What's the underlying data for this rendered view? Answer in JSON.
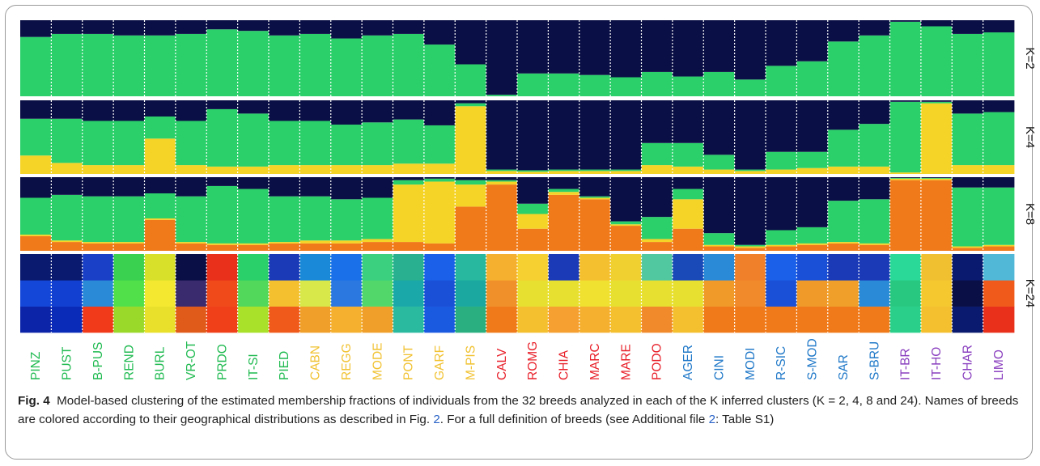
{
  "caption": {
    "label": "Fig. 4",
    "text_1": "Model-based clustering of the estimated membership fractions of individuals from the 32 breeds analyzed in each of the K inferred clusters (K = 2, 4, 8 and 24). Names of breeds are colored according to their geographical distributions as described in Fig.",
    "ref_fig": "2",
    "text_2": ". For a full definition of breeds (see Additional file",
    "ref_file": "2",
    "text_3": ": Table S1)"
  },
  "colors": {
    "green": "#2bd06a",
    "yellow": "#f5d327",
    "navy": "#0a0f45",
    "orange": "#f07a1a",
    "purple_label": "#8a3fbf",
    "green_label": "#1fba50",
    "yellow_label": "#f1c232",
    "red_label": "#e8202a",
    "blue_label": "#1f78c8"
  },
  "chart_data": {
    "type": "bar",
    "stacked": true,
    "orientation": "vertical",
    "x_axis": "breeds (individuals grouped by breed)",
    "panels": [
      {
        "label": "K=2",
        "series": [
          "green",
          "navy"
        ]
      },
      {
        "label": "K=4",
        "series": [
          "yellow",
          "green",
          "navy"
        ]
      },
      {
        "label": "K=8",
        "series": [
          "orange",
          "yellow",
          "green",
          "navy"
        ]
      },
      {
        "label": "K=24",
        "series": [
          "multiple clusters"
        ]
      }
    ],
    "breeds": [
      {
        "name": "PINZ",
        "group": "green",
        "k2": [
          0.78,
          0.22
        ],
        "k4": [
          0.25,
          0.5,
          0.25
        ],
        "k8": [
          0.2,
          0.02,
          0.5,
          0.28
        ],
        "k24": [
          "#0b24a8",
          "#1446d8",
          "#0a1a6e"
        ]
      },
      {
        "name": "PUST",
        "group": "green",
        "k2": [
          0.82,
          0.18
        ],
        "k4": [
          0.15,
          0.6,
          0.25
        ],
        "k8": [
          0.12,
          0.02,
          0.62,
          0.24
        ],
        "k24": [
          "#0a2bb8",
          "#1240d0",
          "#0a1a6e"
        ]
      },
      {
        "name": "B-PUS",
        "group": "green",
        "k2": [
          0.82,
          0.18
        ],
        "k4": [
          0.12,
          0.6,
          0.28
        ],
        "k8": [
          0.1,
          0.02,
          0.62,
          0.26
        ],
        "k24": [
          "#f03a1a",
          "#2a8ad8",
          "#1a40c8"
        ]
      },
      {
        "name": "REND",
        "group": "green",
        "k2": [
          0.8,
          0.2
        ],
        "k4": [
          0.12,
          0.6,
          0.28
        ],
        "k8": [
          0.1,
          0.02,
          0.62,
          0.26
        ],
        "k24": [
          "#9ad82a",
          "#52e04a",
          "#3ad050"
        ]
      },
      {
        "name": "BURL",
        "group": "green",
        "k2": [
          0.8,
          0.2
        ],
        "k4": [
          0.48,
          0.3,
          0.22
        ],
        "k8": [
          0.42,
          0.02,
          0.34,
          0.22
        ],
        "k24": [
          "#e8e02a",
          "#f5e830",
          "#d8e02a"
        ]
      },
      {
        "name": "VR-OT",
        "group": "green",
        "k2": [
          0.82,
          0.18
        ],
        "k4": [
          0.12,
          0.6,
          0.28
        ],
        "k8": [
          0.1,
          0.02,
          0.62,
          0.26
        ],
        "k24": [
          "#e05a1a",
          "#3a2a6e",
          "#0a0f45"
        ]
      },
      {
        "name": "PRDO",
        "group": "green",
        "k2": [
          0.88,
          0.12
        ],
        "k4": [
          0.1,
          0.78,
          0.12
        ],
        "k8": [
          0.08,
          0.02,
          0.78,
          0.12
        ],
        "k24": [
          "#f0401a",
          "#f04a1a",
          "#e8301a"
        ]
      },
      {
        "name": "IT-SI",
        "group": "green",
        "k2": [
          0.86,
          0.14
        ],
        "k4": [
          0.1,
          0.72,
          0.18
        ],
        "k8": [
          0.08,
          0.02,
          0.74,
          0.16
        ],
        "k24": [
          "#a8e02a",
          "#52d85a",
          "#2ad06a"
        ]
      },
      {
        "name": "PIED",
        "group": "green",
        "k2": [
          0.8,
          0.2
        ],
        "k4": [
          0.12,
          0.6,
          0.28
        ],
        "k8": [
          0.1,
          0.02,
          0.62,
          0.26
        ],
        "k24": [
          "#f05a1a",
          "#f5c030",
          "#1a3ab8"
        ]
      },
      {
        "name": "CABN",
        "group": "yellow",
        "k2": [
          0.82,
          0.18
        ],
        "k4": [
          0.12,
          0.6,
          0.28
        ],
        "k8": [
          0.1,
          0.04,
          0.6,
          0.26
        ],
        "k24": [
          "#f0a02a",
          "#d8e84a",
          "#1a8ad8"
        ]
      },
      {
        "name": "REGG",
        "group": "yellow",
        "k2": [
          0.76,
          0.24
        ],
        "k4": [
          0.12,
          0.55,
          0.33
        ],
        "k8": [
          0.1,
          0.04,
          0.56,
          0.3
        ],
        "k24": [
          "#f5b030",
          "#2a78e0",
          "#1a70e8"
        ]
      },
      {
        "name": "MODE",
        "group": "yellow",
        "k2": [
          0.8,
          0.2
        ],
        "k4": [
          0.12,
          0.58,
          0.3
        ],
        "k8": [
          0.12,
          0.04,
          0.56,
          0.28
        ],
        "k24": [
          "#f0a02a",
          "#52d86a",
          "#3ad080"
        ]
      },
      {
        "name": "PONT",
        "group": "yellow",
        "k2": [
          0.82,
          0.18
        ],
        "k4": [
          0.14,
          0.6,
          0.26
        ],
        "k8": [
          0.12,
          0.78,
          0.06,
          0.04
        ],
        "k24": [
          "#2abaa0",
          "#1aa8a8",
          "#28b090"
        ]
      },
      {
        "name": "GARF",
        "group": "yellow",
        "k2": [
          0.68,
          0.32
        ],
        "k4": [
          0.14,
          0.52,
          0.34
        ],
        "k8": [
          0.1,
          0.84,
          0.04,
          0.02
        ],
        "k24": [
          "#1a5ae0",
          "#1a50d8",
          "#1a60e8"
        ]
      },
      {
        "name": "M-PIS",
        "group": "yellow",
        "k2": [
          0.42,
          0.58
        ],
        "k4": [
          0.92,
          0.04,
          0.04
        ],
        "k8": [
          0.6,
          0.3,
          0.06,
          0.04
        ],
        "k24": [
          "#2ab080",
          "#1aa8a0",
          "#28b8a0"
        ]
      },
      {
        "name": "CALV",
        "group": "red",
        "k2": [
          0.02,
          0.98
        ],
        "k4": [
          0.04,
          0.02,
          0.94
        ],
        "k8": [
          0.9,
          0.04,
          0.02,
          0.04
        ],
        "k24": [
          "#f07a1a",
          "#f0902a",
          "#f5b030"
        ]
      },
      {
        "name": "ROMG",
        "group": "red",
        "k2": [
          0.3,
          0.7
        ],
        "k4": [
          0.03,
          0.02,
          0.95
        ],
        "k8": [
          0.3,
          0.2,
          0.14,
          0.36
        ],
        "k24": [
          "#f5c030",
          "#e8e030",
          "#f5d030"
        ]
      },
      {
        "name": "CHIA",
        "group": "red",
        "k2": [
          0.3,
          0.7
        ],
        "k4": [
          0.04,
          0.02,
          0.94
        ],
        "k8": [
          0.76,
          0.04,
          0.04,
          0.16
        ],
        "k24": [
          "#f5a030",
          "#e8e030",
          "#1a3ab8"
        ]
      },
      {
        "name": "MARC",
        "group": "red",
        "k2": [
          0.28,
          0.72
        ],
        "k4": [
          0.04,
          0.02,
          0.94
        ],
        "k8": [
          0.7,
          0.02,
          0.02,
          0.26
        ],
        "k24": [
          "#f5b030",
          "#f0e030",
          "#f5c030"
        ]
      },
      {
        "name": "MARE",
        "group": "red",
        "k2": [
          0.25,
          0.75
        ],
        "k4": [
          0.04,
          0.02,
          0.94
        ],
        "k8": [
          0.34,
          0.02,
          0.04,
          0.6
        ],
        "k24": [
          "#f5c030",
          "#e8e030",
          "#f0d030"
        ]
      },
      {
        "name": "PODO",
        "group": "red",
        "k2": [
          0.32,
          0.68
        ],
        "k4": [
          0.12,
          0.3,
          0.58
        ],
        "k8": [
          0.12,
          0.04,
          0.3,
          0.54
        ],
        "k24": [
          "#f08a2a",
          "#e8e030",
          "#52c8a0"
        ]
      },
      {
        "name": "AGER",
        "group": "blue",
        "k2": [
          0.26,
          0.74
        ],
        "k4": [
          0.1,
          0.32,
          0.58
        ],
        "k8": [
          0.3,
          0.4,
          0.14,
          0.16
        ],
        "k24": [
          "#f5c030",
          "#e8e030",
          "#1a4ab8"
        ]
      },
      {
        "name": "CINI",
        "group": "blue",
        "k2": [
          0.32,
          0.68
        ],
        "k4": [
          0.06,
          0.2,
          0.74
        ],
        "k8": [
          0.06,
          0.02,
          0.16,
          0.76
        ],
        "k24": [
          "#f07a1a",
          "#f09a2a",
          "#2a8ad8"
        ]
      },
      {
        "name": "MODI",
        "group": "blue",
        "k2": [
          0.22,
          0.78
        ],
        "k4": [
          0.04,
          0.02,
          0.94
        ],
        "k8": [
          0.04,
          0.02,
          0.02,
          0.92
        ],
        "k24": [
          "#f07a1a",
          "#f08a2a",
          "#f0802a"
        ]
      },
      {
        "name": "R-SIC",
        "group": "blue",
        "k2": [
          0.4,
          0.6
        ],
        "k4": [
          0.06,
          0.24,
          0.7
        ],
        "k8": [
          0.06,
          0.02,
          0.2,
          0.72
        ],
        "k24": [
          "#f07a1a",
          "#1a50d8",
          "#1a60e8"
        ]
      },
      {
        "name": "S-MOD",
        "group": "blue",
        "k2": [
          0.46,
          0.54
        ],
        "k4": [
          0.08,
          0.22,
          0.7
        ],
        "k8": [
          0.08,
          0.02,
          0.22,
          0.68
        ],
        "k24": [
          "#f07a1a",
          "#f09a2a",
          "#1a50d8"
        ]
      },
      {
        "name": "SAR",
        "group": "blue",
        "k2": [
          0.72,
          0.28
        ],
        "k4": [
          0.1,
          0.5,
          0.4
        ],
        "k8": [
          0.1,
          0.02,
          0.56,
          0.32
        ],
        "k24": [
          "#f07a1a",
          "#f0a02a",
          "#1a3ab8"
        ]
      },
      {
        "name": "S-BRU",
        "group": "blue",
        "k2": [
          0.8,
          0.2
        ],
        "k4": [
          0.1,
          0.58,
          0.32
        ],
        "k8": [
          0.08,
          0.02,
          0.6,
          0.3
        ],
        "k24": [
          "#f07a1a",
          "#2a8ad8",
          "#1a3ab8"
        ]
      },
      {
        "name": "IT-BR",
        "group": "purple",
        "k2": [
          0.98,
          0.02
        ],
        "k4": [
          0.02,
          0.96,
          0.02
        ],
        "k8": [
          0.96,
          0.02,
          0.01,
          0.01
        ],
        "k24": [
          "#2ad08a",
          "#28c880",
          "#2ad898"
        ]
      },
      {
        "name": "IT-HO",
        "group": "purple",
        "k2": [
          0.92,
          0.08
        ],
        "k4": [
          0.96,
          0.02,
          0.02
        ],
        "k8": [
          0.96,
          0.02,
          0.01,
          0.01
        ],
        "k24": [
          "#f5c030",
          "#f5c830",
          "#f0c030"
        ]
      },
      {
        "name": "CHAR",
        "group": "purple",
        "k2": [
          0.82,
          0.18
        ],
        "k4": [
          0.12,
          0.7,
          0.18
        ],
        "k8": [
          0.04,
          0.02,
          0.8,
          0.14
        ],
        "k24": [
          "#0a1a6e",
          "#0a0f45",
          "#0a1a6e"
        ]
      },
      {
        "name": "LIMO",
        "group": "purple",
        "k2": [
          0.84,
          0.16
        ],
        "k4": [
          0.12,
          0.72,
          0.16
        ],
        "k8": [
          0.06,
          0.02,
          0.78,
          0.14
        ],
        "k24": [
          "#e8301a",
          "#f05a1a",
          "#52b8d8"
        ]
      }
    ]
  }
}
